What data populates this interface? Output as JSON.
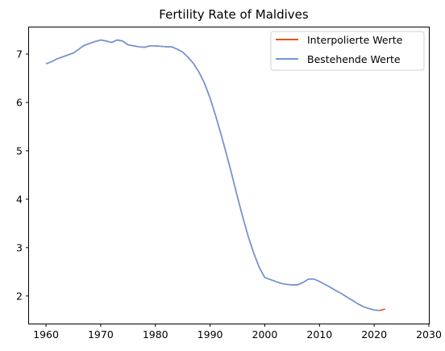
{
  "chart_data": {
    "type": "line",
    "title": "Fertility Rate of Maldives",
    "xlabel": "",
    "ylabel": "",
    "xlim": [
      1956.9,
      2030
    ],
    "ylim": [
      1.43,
      7.55
    ],
    "xticks": [
      "1960",
      "1970",
      "1980",
      "1990",
      "2000",
      "2010",
      "2020",
      "2030"
    ],
    "yticks": [
      "2",
      "3",
      "4",
      "5",
      "6",
      "7"
    ],
    "legend": {
      "placement": "top-right",
      "entries": [
        "Interpolierte Werte",
        "Bestehende Werte"
      ]
    },
    "colors": {
      "interpolated": "#e8501c",
      "existing": "#6a98dd"
    },
    "series": [
      {
        "name": "Interpolierte Werte",
        "x": [
          1960,
          1961,
          1962,
          1963,
          1964,
          1965,
          1966,
          1967,
          1968,
          1969,
          1970,
          1971,
          1972,
          1973,
          1974,
          1975,
          1976,
          1977,
          1978,
          1979,
          1980,
          1981,
          1982,
          1983,
          1984,
          1985,
          1986,
          1987,
          1988,
          1989,
          1990,
          1991,
          1992,
          1993,
          1994,
          1995,
          1996,
          1997,
          1998,
          1999,
          2000,
          2001,
          2002,
          2003,
          2004,
          2005,
          2006,
          2007,
          2008,
          2009,
          2010,
          2011,
          2012,
          2013,
          2014,
          2015,
          2016,
          2017,
          2018,
          2019,
          2020,
          2021,
          2022
        ],
        "values": [
          6.8,
          6.84,
          6.9,
          6.94,
          6.98,
          7.02,
          7.1,
          7.18,
          7.22,
          7.26,
          7.29,
          7.27,
          7.24,
          7.29,
          7.27,
          7.19,
          7.17,
          7.15,
          7.14,
          7.17,
          7.17,
          7.16,
          7.15,
          7.15,
          7.1,
          7.04,
          6.93,
          6.8,
          6.62,
          6.39,
          6.09,
          5.73,
          5.34,
          4.93,
          4.5,
          4.05,
          3.62,
          3.22,
          2.88,
          2.59,
          2.38,
          2.34,
          2.3,
          2.26,
          2.24,
          2.23,
          2.23,
          2.28,
          2.35,
          2.35,
          2.3,
          2.24,
          2.18,
          2.11,
          2.05,
          1.98,
          1.91,
          1.84,
          1.78,
          1.74,
          1.71,
          1.7,
          1.73
        ]
      },
      {
        "name": "Bestehende Werte",
        "x": [
          1960,
          1961,
          1962,
          1963,
          1964,
          1965,
          1966,
          1967,
          1968,
          1969,
          1970,
          1971,
          1972,
          1973,
          1974,
          1975,
          1976,
          1977,
          1978,
          1979,
          1980,
          1981,
          1982,
          1983,
          1984,
          1985,
          1986,
          1987,
          1988,
          1989,
          1990,
          1991,
          1992,
          1993,
          1994,
          1995,
          1996,
          1997,
          1998,
          1999,
          2000,
          2001,
          2002,
          2003,
          2004,
          2005,
          2006,
          2007,
          2008,
          2009,
          2010,
          2011,
          2012,
          2013,
          2014,
          2015,
          2016,
          2017,
          2018,
          2019,
          2020,
          2021
        ],
        "values": [
          6.8,
          6.84,
          6.9,
          6.94,
          6.98,
          7.02,
          7.1,
          7.18,
          7.22,
          7.26,
          7.29,
          7.27,
          7.24,
          7.29,
          7.27,
          7.19,
          7.17,
          7.15,
          7.14,
          7.17,
          7.17,
          7.16,
          7.15,
          7.15,
          7.1,
          7.04,
          6.93,
          6.8,
          6.62,
          6.39,
          6.09,
          5.73,
          5.34,
          4.93,
          4.5,
          4.05,
          3.62,
          3.22,
          2.88,
          2.59,
          2.38,
          2.34,
          2.3,
          2.26,
          2.24,
          2.23,
          2.23,
          2.28,
          2.35,
          2.35,
          2.3,
          2.24,
          2.18,
          2.11,
          2.05,
          1.98,
          1.91,
          1.84,
          1.78,
          1.74,
          1.71,
          1.7
        ]
      }
    ]
  }
}
